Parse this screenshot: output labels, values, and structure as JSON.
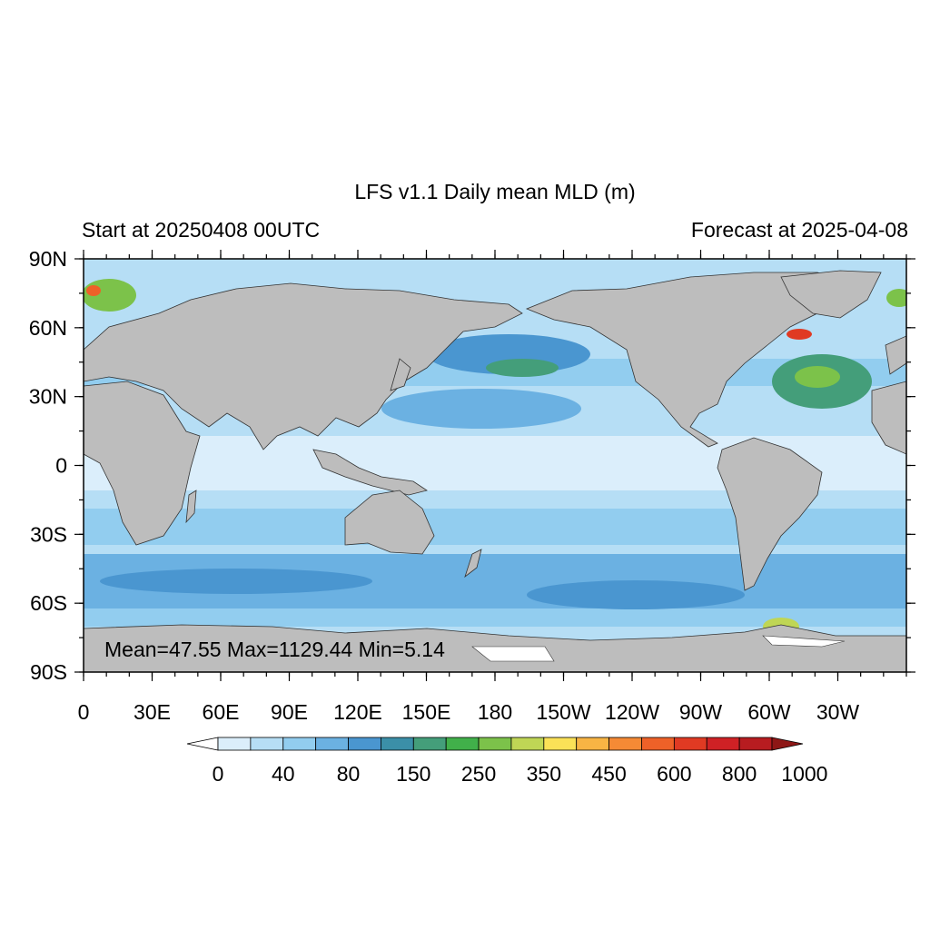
{
  "title": "LFS v1.1 Daily mean MLD (m)",
  "left_string": "Start at 20250408 00UTC",
  "right_string": "Forecast at 2025-04-08",
  "stats": "Mean=47.55  Max=1129.44  Min=5.14",
  "lat_labels": [
    "90N",
    "60N",
    "30N",
    "0",
    "30S",
    "60S",
    "90S"
  ],
  "lon_labels": [
    "0",
    "30E",
    "60E",
    "90E",
    "120E",
    "150E",
    "180",
    "150W",
    "120W",
    "90W",
    "60W",
    "30W"
  ],
  "colorbar": {
    "labels": [
      "0",
      "40",
      "80",
      "150",
      "250",
      "350",
      "450",
      "600",
      "800",
      "1000"
    ],
    "colors": [
      "#ffffff",
      "#dbeefb",
      "#b6def5",
      "#92cdef",
      "#6bb1e2",
      "#4a96d0",
      "#3b8fa8",
      "#449e7a",
      "#41b04a",
      "#7cc24a",
      "#bfd655",
      "#fbe157",
      "#f8b444",
      "#f58a35",
      "#ee6128",
      "#e03a23",
      "#cf2125",
      "#b71c20",
      "#8e1716"
    ]
  },
  "map_colors": {
    "land": "#bdbdbd",
    "ocean_shallow": "#dbeefb",
    "ocean_mid": "#92cdef",
    "ocean_deep": "#4a96d0",
    "ice": "#ffffff"
  }
}
